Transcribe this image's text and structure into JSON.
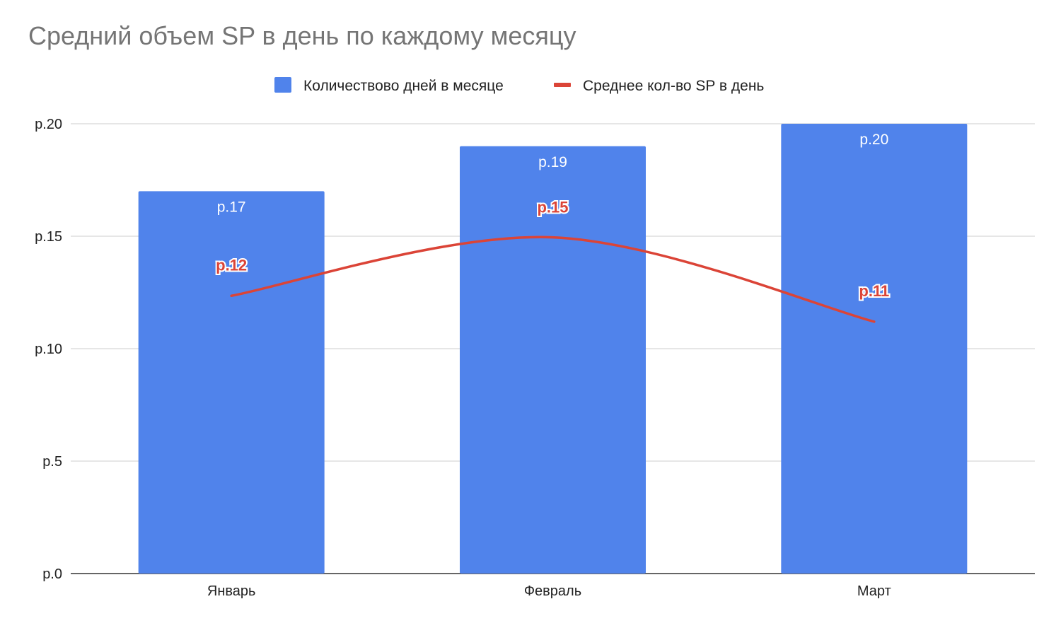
{
  "chart_data": {
    "type": "bar",
    "title": "Средний объем SP в день по каждому месяцу",
    "categories": [
      "Январь",
      "Февраль",
      "Март"
    ],
    "series": [
      {
        "name": "Количествово дней в месяце",
        "kind": "bar",
        "color": "#5083eb",
        "values": [
          17,
          19,
          20
        ],
        "labels": [
          "р.17",
          "р.19",
          "р.20"
        ]
      },
      {
        "name": "Среднее кол-во SP в день",
        "kind": "line",
        "color": "#db4437",
        "values": [
          12.35,
          14.95,
          11.2
        ],
        "labels": [
          "р.12",
          "р.15",
          "р.11"
        ]
      }
    ],
    "ylim": [
      0,
      20
    ],
    "yticks": [
      0,
      5,
      10,
      15,
      20
    ],
    "ytick_labels": [
      "р.0",
      "р.5",
      "р.10",
      "р.15",
      "р.20"
    ],
    "xlabel": "",
    "ylabel": "",
    "legend_position": "top-center",
    "grid": true
  }
}
